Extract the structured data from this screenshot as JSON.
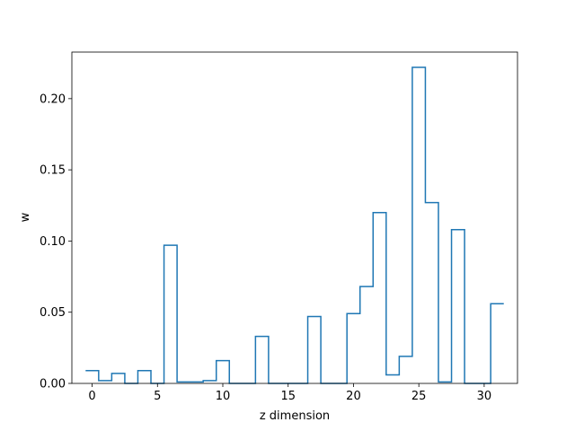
{
  "chart_data": {
    "type": "step",
    "title": "",
    "xlabel": "z dimension",
    "ylabel": "w",
    "xlim": [
      -1.55,
      32.55
    ],
    "ylim": [
      0,
      0.2327
    ],
    "xticks": [
      0,
      5,
      10,
      15,
      20,
      25,
      30
    ],
    "yticks": [
      0.0,
      0.05,
      0.1,
      0.15,
      0.2,
      0.25
    ],
    "ytick_labels": [
      "0.00",
      "0.05",
      "0.10",
      "0.15",
      "0.20"
    ],
    "grid": false,
    "series": [
      {
        "color": "#1f77b4",
        "x": [
          0,
          1,
          2,
          3,
          4,
          5,
          6,
          7,
          8,
          9,
          10,
          11,
          12,
          13,
          14,
          15,
          16,
          17,
          18,
          19,
          20,
          21,
          22,
          23,
          24,
          25,
          26,
          27,
          28,
          29,
          30,
          31
        ],
        "values": [
          0.009,
          0.002,
          0.007,
          0.0,
          0.009,
          0.0,
          0.097,
          0.001,
          0.001,
          0.002,
          0.016,
          0.0,
          0.0,
          0.033,
          0.0,
          0.0,
          0.0,
          0.047,
          0.0,
          0.0,
          0.049,
          0.068,
          0.12,
          0.006,
          0.019,
          0.222,
          0.127,
          0.001,
          0.108,
          0.0,
          0.0,
          0.056
        ]
      }
    ]
  }
}
